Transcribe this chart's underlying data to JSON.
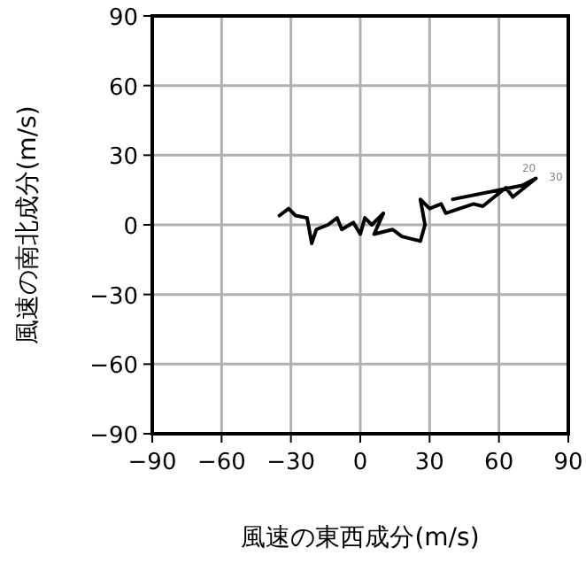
{
  "chart_data": {
    "type": "line",
    "xlabel": "風速の東西成分(m/s)",
    "ylabel": "風速の南北成分(m/s)",
    "series": [
      {
        "color": "#000000",
        "x": [
          -35,
          -31,
          -28,
          -23,
          -21,
          -19,
          -14,
          -10,
          -8,
          -3,
          0,
          2,
          5,
          10,
          6,
          14,
          18,
          26,
          28,
          26,
          30,
          35,
          37,
          49,
          53,
          63,
          66,
          76,
          70,
          40
        ],
        "values": [
          4,
          7,
          4,
          3,
          -8,
          -2,
          0,
          3,
          -2,
          1,
          -4,
          3,
          0,
          5,
          -4,
          -2,
          -5,
          -7,
          0,
          11,
          7,
          9,
          5,
          9,
          8,
          16,
          12,
          20,
          17,
          11
        ]
      }
    ],
    "xlim": [
      -90,
      90
    ],
    "ylim": [
      -90,
      90
    ],
    "xticks": [
      {
        "value": -90,
        "label": "−90"
      },
      {
        "value": -60,
        "label": "−60"
      },
      {
        "value": -30,
        "label": "−30"
      },
      0,
      30,
      60,
      90
    ],
    "yticks": [
      {
        "value": -90,
        "label": "−90"
      },
      {
        "value": -60,
        "label": "−60"
      },
      {
        "value": -30,
        "label": "−30"
      },
      0,
      30,
      60,
      90
    ],
    "grid": true,
    "annotations": [
      {
        "text": "20",
        "x": 73,
        "y": 23
      },
      "30"
    ]
  }
}
